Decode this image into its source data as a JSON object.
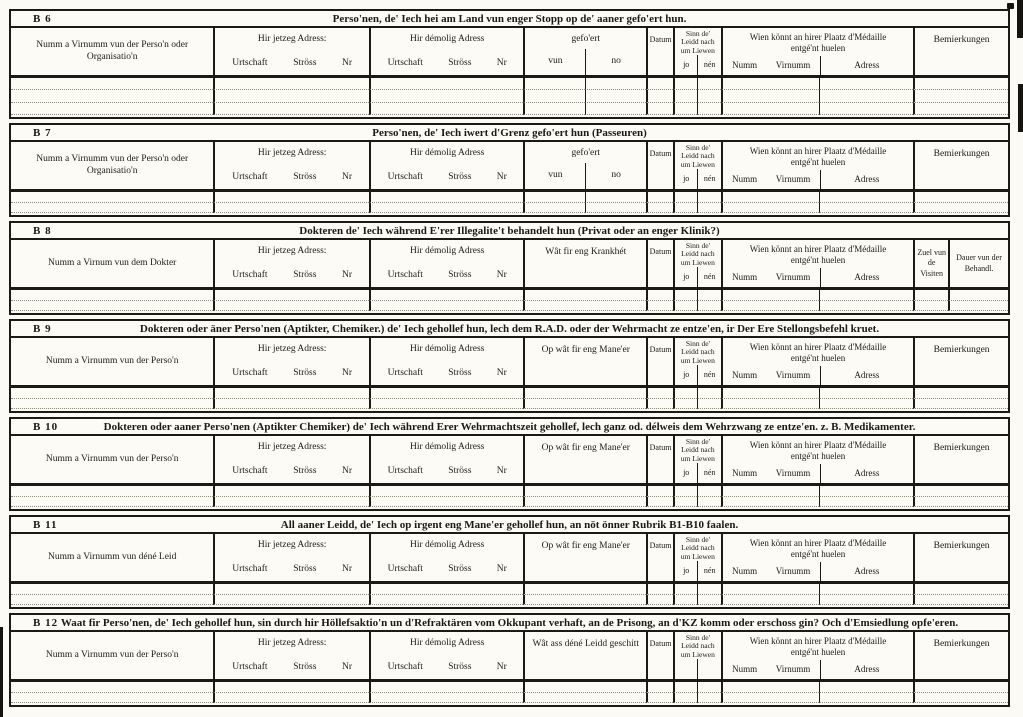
{
  "theme": {
    "paper": "#fbfaf4",
    "ink": "#1b1a15"
  },
  "labels": {
    "jetzeg": "Hir jetzeg Adress:",
    "demolig": "Hir démolig Adress",
    "urtschaft": "Urtschaft",
    "stross": "Ströss",
    "nr": "Nr",
    "gefoert": "gefo'ert",
    "vun": "vun",
    "no": "no",
    "datum": "Datum",
    "sinn_l1": "Sinn de'",
    "sinn_l2": "Leidd nach",
    "sinn_l3": "um Liewen",
    "jo": "jo",
    "nen": "nén",
    "wien_l1": "Wien könnt an hirer Plaatz d'Médaille",
    "wien_l2": "entgé'nt huelen",
    "numm": "Numm",
    "virnumm": "Virnumm",
    "adress": "Adress",
    "bemierkungen": "Bemierkungen"
  },
  "sections": [
    {
      "code": "B 6",
      "title": "Perso'nen, de' Iech hei am Land vun enger Stopp op de' aaner gefo'ert hun.",
      "name_col": "Numm a Virnumm vun der Perso'n oder Organisatio'n",
      "middle_split": true,
      "sinn_labels": true,
      "tail": "bemierkungen",
      "rows": 3
    },
    {
      "code": "B 7",
      "title": "Perso'nen, de' Iech iwert d'Grenz gefo'ert hun (Passeuren)",
      "name_col": "Numm a Virnumm vun der Perso'n oder Organisatio'n",
      "middle_split": true,
      "sinn_labels": true,
      "tail": "bemierkungen",
      "rows": 2
    },
    {
      "code": "B 8",
      "title": "Dokteren de' Iech während E'rer Illegalite't behandelt hun (Privat oder an enger Klinik?)",
      "name_col": "Numm a Virnum vun dem Dokter",
      "middle_label": "Wât fir eng Krankhét",
      "middle_split": false,
      "sinn_labels": true,
      "tail": "visits",
      "tail1": "Zuel vun de Visiten",
      "tail2": "Dauer vun der Behandl.",
      "rows": 2
    },
    {
      "code": "B 9",
      "title": "Dokteren oder äner Perso'nen (Aptikter, Chemiker.) de' Iech gehollef hun, lech dem R.A.D. oder der Wehrmacht ze entze'en, ir Der Ere Stellongsbefehl kruet.",
      "name_col": "Numm a Virnumm vun der Perso'n",
      "middle_label": "Op wât fir eng Mane'er",
      "middle_split": false,
      "sinn_labels": true,
      "tail": "bemierkungen",
      "rows": 2
    },
    {
      "code": "B 10",
      "title": "Dokteren oder aaner Perso'nen (Aptikter Chemiker) de' Iech während Erer Wehrmachtszeit gehollef, lech ganz od. délweis dem Wehrzwang ze entze'en. z. B. Medikamenter.",
      "name_col": "Numm a Virnumm vun der Perso'n",
      "middle_label": "Op wât fir eng Mane'er",
      "middle_split": false,
      "sinn_labels": true,
      "tail": "bemierkungen",
      "rows": 2
    },
    {
      "code": "B 11",
      "title": "All aaner Leidd, de' Iech op irgent eng Mane'er gehollef hun, an nöt önner Rubrik B1-B10 faalen.",
      "name_col": "Numm a Virnumm vun déné Leid",
      "middle_label": "Op wât fir eng Mane'er",
      "middle_split": false,
      "sinn_labels": true,
      "tail": "bemierkungen",
      "rows": 2
    },
    {
      "code": "B 12",
      "title": "Waat fir Perso'nen, de' Iech gehollef hun, sin durch hir Höllefsaktio'n un d'Refraktären vom Okkupant verhaft, an de Prisong, an d'KZ komm oder erschoss gin? Och d'Emsiedlung opfe'eren.",
      "name_col": "Numm a Virnumm vun der Perso'n",
      "middle_label": "Wât ass déné Leidd geschitt",
      "middle_split": false,
      "sinn_labels": false,
      "tail": "bemierkungen",
      "rows": 2
    }
  ]
}
